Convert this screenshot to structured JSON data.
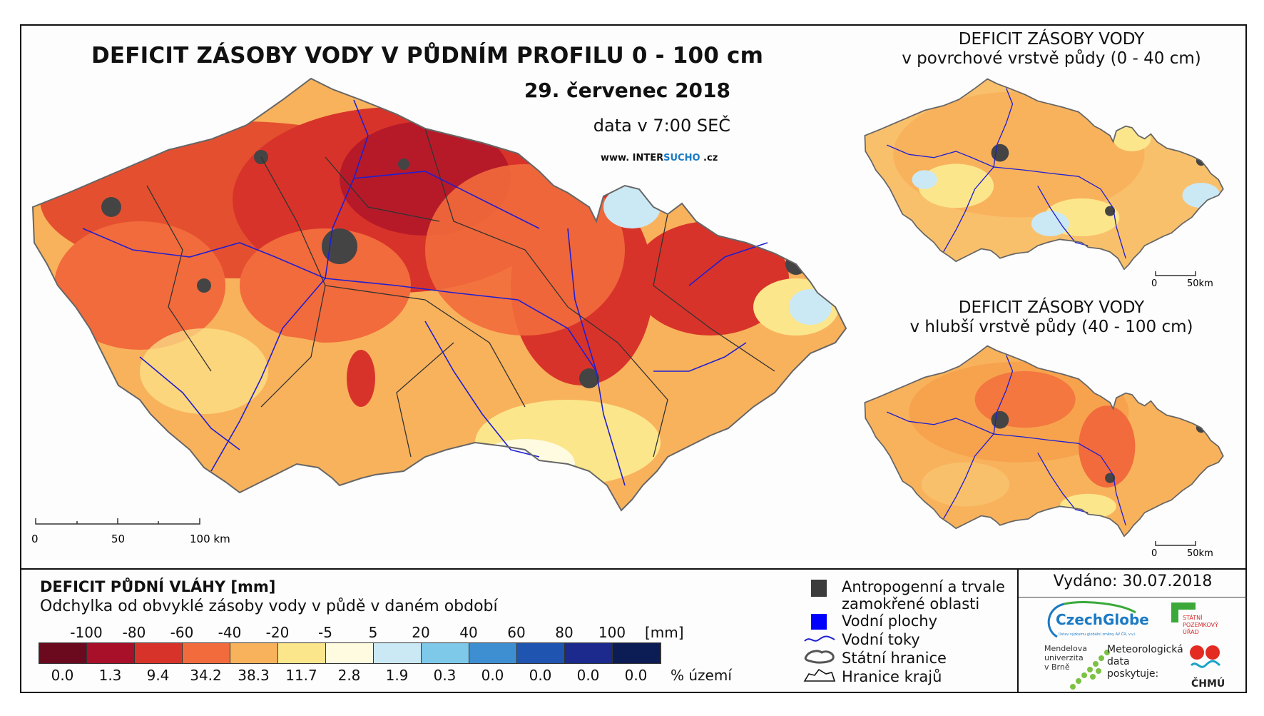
{
  "title": "DEFICIT ZÁSOBY VODY V PŮDNÍM PROFILU 0 - 100 cm",
  "date": "29. červenec 2018",
  "time": "data v 7:00 SEČ",
  "website": {
    "prefix": "www. INTER",
    "highlight": "SUCHO",
    "suffix": " .cz"
  },
  "main_map": {
    "scale_labels": [
      "0",
      "50",
      "100 km"
    ]
  },
  "inset_top": {
    "title": "DEFICIT ZÁSOBY VODY",
    "subtitle": "v povrchové vrstvě půdy (0 - 40 cm)",
    "scale_labels": [
      "0",
      "50km"
    ]
  },
  "inset_bottom": {
    "title": "DEFICIT ZÁSOBY VODY",
    "subtitle": "v hlubší vrstvě půdy (40 - 100 cm)",
    "scale_labels": [
      "0",
      "50km"
    ]
  },
  "legend": {
    "title": "DEFICIT PŮDNÍ VLÁHY [mm]",
    "subtitle": "Odchylka od obvyklé zásoby vody v půdě v daném období",
    "ticks": [
      "-100",
      "-80",
      "-60",
      "-40",
      "-20",
      "-5",
      "5",
      "20",
      "40",
      "60",
      "80",
      "100"
    ],
    "unit": "[mm]",
    "colors": [
      "#6b0a1f",
      "#a8102a",
      "#d8332a",
      "#f26b3c",
      "#f9b25c",
      "#fce68c",
      "#fffbe0",
      "#cbe8f5",
      "#7ec8ea",
      "#3d8fd1",
      "#1f55b0",
      "#1b2a8c",
      "#0c1c55"
    ],
    "percentages": [
      "0.0",
      "1.3",
      "9.4",
      "34.2",
      "38.3",
      "11.7",
      "2.8",
      "1.9",
      "0.3",
      "0.0",
      "0.0",
      "0.0",
      "0.0"
    ],
    "percent_unit": "% území"
  },
  "symbols": {
    "anthropogenic": "Antropogenní a trvale zamokřené oblasti",
    "water_bodies": "Vodní plochy",
    "rivers": "Vodní toky",
    "state_border": "Státní hranice",
    "region_border": "Hranice krajů"
  },
  "issued": "Vydáno: 30.07.2018",
  "logos": {
    "czechglobe": "CzechGlobe",
    "czechglobe_sub": "Ústav výzkumu globální změny AV ČR, v.v.i.",
    "spu": [
      "STÁTNÍ",
      "POZEMKOVÝ",
      "ÚŘAD"
    ],
    "mendelu": [
      "Mendelova",
      "univerzita",
      "v Brně"
    ],
    "meteo": [
      "Meteorologická",
      "data",
      "poskytuje:"
    ],
    "chmu": "ČHMÚ"
  }
}
